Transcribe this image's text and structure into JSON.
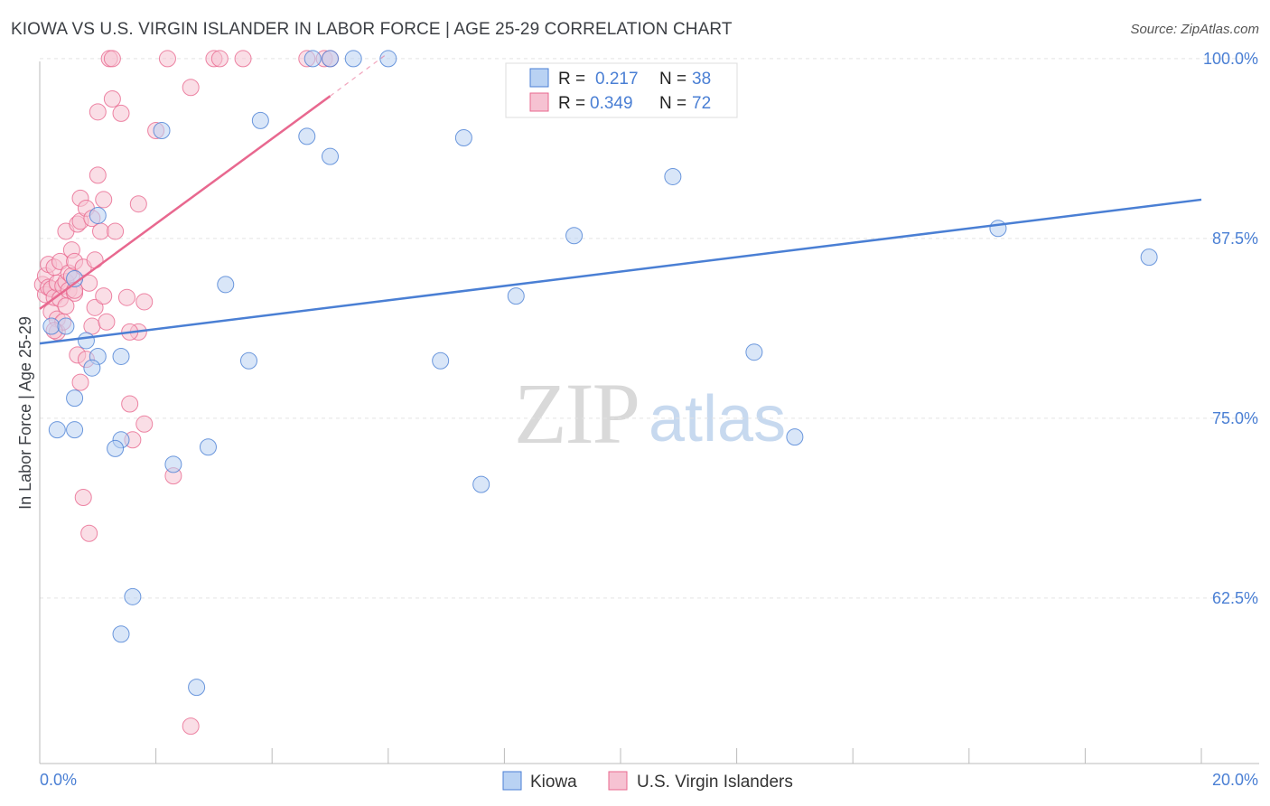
{
  "title": "KIOWA VS U.S. VIRGIN ISLANDER IN LABOR FORCE | AGE 25-29 CORRELATION CHART",
  "source": "Source: ZipAtlas.com",
  "watermark": {
    "zip": "ZIP",
    "atlas": "atlas"
  },
  "colors": {
    "blue": "#4a7fd4",
    "blue_fill": "#b9d2f3",
    "pink": "#e8688f",
    "pink_fill": "#f6c2d2",
    "axis_text": "#4a7fd4"
  },
  "chart_data": {
    "type": "scatter",
    "xlabel": "",
    "ylabel": "In Labor Force | Age 25-29",
    "x_range": [
      0,
      20
    ],
    "y_range": [
      51,
      101
    ],
    "x_tick_labels": [
      "0.0%",
      "20.0%"
    ],
    "y_ticks": [
      62.5,
      75.0,
      87.5,
      100.0
    ],
    "y_tick_labels": [
      "62.5%",
      "75.0%",
      "87.5%",
      "100.0%"
    ],
    "legend": [
      {
        "r_label": "R =",
        "r": "0.217",
        "n_label": "N =",
        "n": "38"
      },
      {
        "r_label": "R =",
        "r": "0.349",
        "n_label": "N =",
        "n": "72"
      }
    ],
    "series": [
      {
        "name": "Kiowa",
        "color": "#4a7fd4",
        "trend": {
          "x0": 0,
          "y0": 80.2,
          "x1": 20,
          "y1": 90.2
        },
        "points": [
          [
            0.2,
            81.4
          ],
          [
            0.45,
            81.4
          ],
          [
            0.8,
            80.4
          ],
          [
            1.0,
            79.3
          ],
          [
            0.6,
            76.4
          ],
          [
            0.9,
            78.5
          ],
          [
            0.6,
            74.2
          ],
          [
            1.4,
            73.5
          ],
          [
            0.6,
            84.7
          ],
          [
            1.0,
            89.1
          ],
          [
            1.3,
            72.9
          ],
          [
            2.1,
            95.0
          ],
          [
            2.3,
            71.8
          ],
          [
            2.9,
            73.0
          ],
          [
            3.2,
            84.3
          ],
          [
            3.6,
            79.0
          ],
          [
            3.8,
            95.7
          ],
          [
            4.6,
            94.6
          ],
          [
            5.0,
            93.2
          ],
          [
            5.4,
            100.0
          ],
          [
            6.0,
            100.0
          ],
          [
            6.9,
            79.0
          ],
          [
            7.3,
            94.5
          ],
          [
            7.6,
            70.4
          ],
          [
            8.2,
            83.5
          ],
          [
            9.2,
            87.7
          ],
          [
            10.9,
            91.8
          ],
          [
            12.3,
            79.6
          ],
          [
            13.0,
            73.7
          ],
          [
            16.5,
            88.2
          ],
          [
            19.1,
            86.2
          ],
          [
            1.6,
            62.6
          ],
          [
            1.4,
            60.0
          ],
          [
            2.7,
            56.3
          ],
          [
            5.0,
            100.0
          ],
          [
            0.3,
            74.2
          ],
          [
            4.7,
            100.0
          ],
          [
            1.4,
            79.3
          ]
        ]
      },
      {
        "name": "U.S. Virgin Islanders",
        "color": "#e8688f",
        "trend": {
          "x0": 0,
          "y0": 82.6,
          "x1": 5.0,
          "y1": 97.4,
          "dash_x1": 6.0,
          "dash_y1": 100.4
        },
        "points": [
          [
            0.05,
            84.3
          ],
          [
            0.1,
            84.9
          ],
          [
            0.1,
            83.6
          ],
          [
            0.15,
            85.7
          ],
          [
            0.15,
            84.1
          ],
          [
            0.2,
            82.4
          ],
          [
            0.2,
            84.0
          ],
          [
            0.25,
            85.5
          ],
          [
            0.25,
            83.4
          ],
          [
            0.3,
            84.4
          ],
          [
            0.3,
            81.9
          ],
          [
            0.3,
            81.0
          ],
          [
            0.35,
            83.3
          ],
          [
            0.35,
            85.9
          ],
          [
            0.4,
            84.2
          ],
          [
            0.4,
            81.7
          ],
          [
            0.45,
            88.0
          ],
          [
            0.45,
            84.5
          ],
          [
            0.5,
            85.1
          ],
          [
            0.5,
            83.9
          ],
          [
            0.55,
            84.9
          ],
          [
            0.55,
            86.7
          ],
          [
            0.6,
            85.9
          ],
          [
            0.6,
            83.7
          ],
          [
            0.65,
            88.5
          ],
          [
            0.65,
            79.4
          ],
          [
            0.7,
            90.3
          ],
          [
            0.7,
            77.5
          ],
          [
            0.7,
            88.7
          ],
          [
            0.75,
            85.5
          ],
          [
            0.8,
            89.6
          ],
          [
            0.8,
            79.1
          ],
          [
            0.85,
            84.4
          ],
          [
            0.9,
            88.9
          ],
          [
            0.9,
            81.4
          ],
          [
            0.95,
            86.0
          ],
          [
            0.95,
            82.7
          ],
          [
            1.0,
            96.3
          ],
          [
            1.0,
            91.9
          ],
          [
            1.05,
            88.0
          ],
          [
            1.1,
            90.2
          ],
          [
            1.1,
            83.5
          ],
          [
            1.15,
            81.7
          ],
          [
            1.2,
            100.0
          ],
          [
            1.25,
            100.0
          ],
          [
            1.25,
            97.2
          ],
          [
            1.3,
            88.0
          ],
          [
            1.4,
            96.2
          ],
          [
            1.5,
            83.4
          ],
          [
            1.55,
            76.0
          ],
          [
            1.6,
            73.5
          ],
          [
            1.7,
            89.9
          ],
          [
            1.7,
            81.0
          ],
          [
            1.8,
            83.1
          ],
          [
            1.8,
            74.6
          ],
          [
            2.0,
            95.0
          ],
          [
            2.2,
            100.0
          ],
          [
            2.3,
            71.0
          ],
          [
            2.6,
            98.0
          ],
          [
            3.0,
            100.0
          ],
          [
            3.1,
            100.0
          ],
          [
            3.5,
            100.0
          ],
          [
            4.6,
            100.0
          ],
          [
            4.9,
            100.0
          ],
          [
            5.0,
            100.0
          ],
          [
            2.6,
            53.6
          ],
          [
            0.75,
            69.5
          ],
          [
            0.85,
            67.0
          ],
          [
            1.55,
            81.0
          ],
          [
            0.25,
            81.1
          ],
          [
            0.45,
            82.8
          ],
          [
            0.6,
            83.9
          ]
        ]
      }
    ]
  },
  "bottom_legend": [
    {
      "label": "Kiowa"
    },
    {
      "label": "U.S. Virgin Islanders"
    }
  ]
}
